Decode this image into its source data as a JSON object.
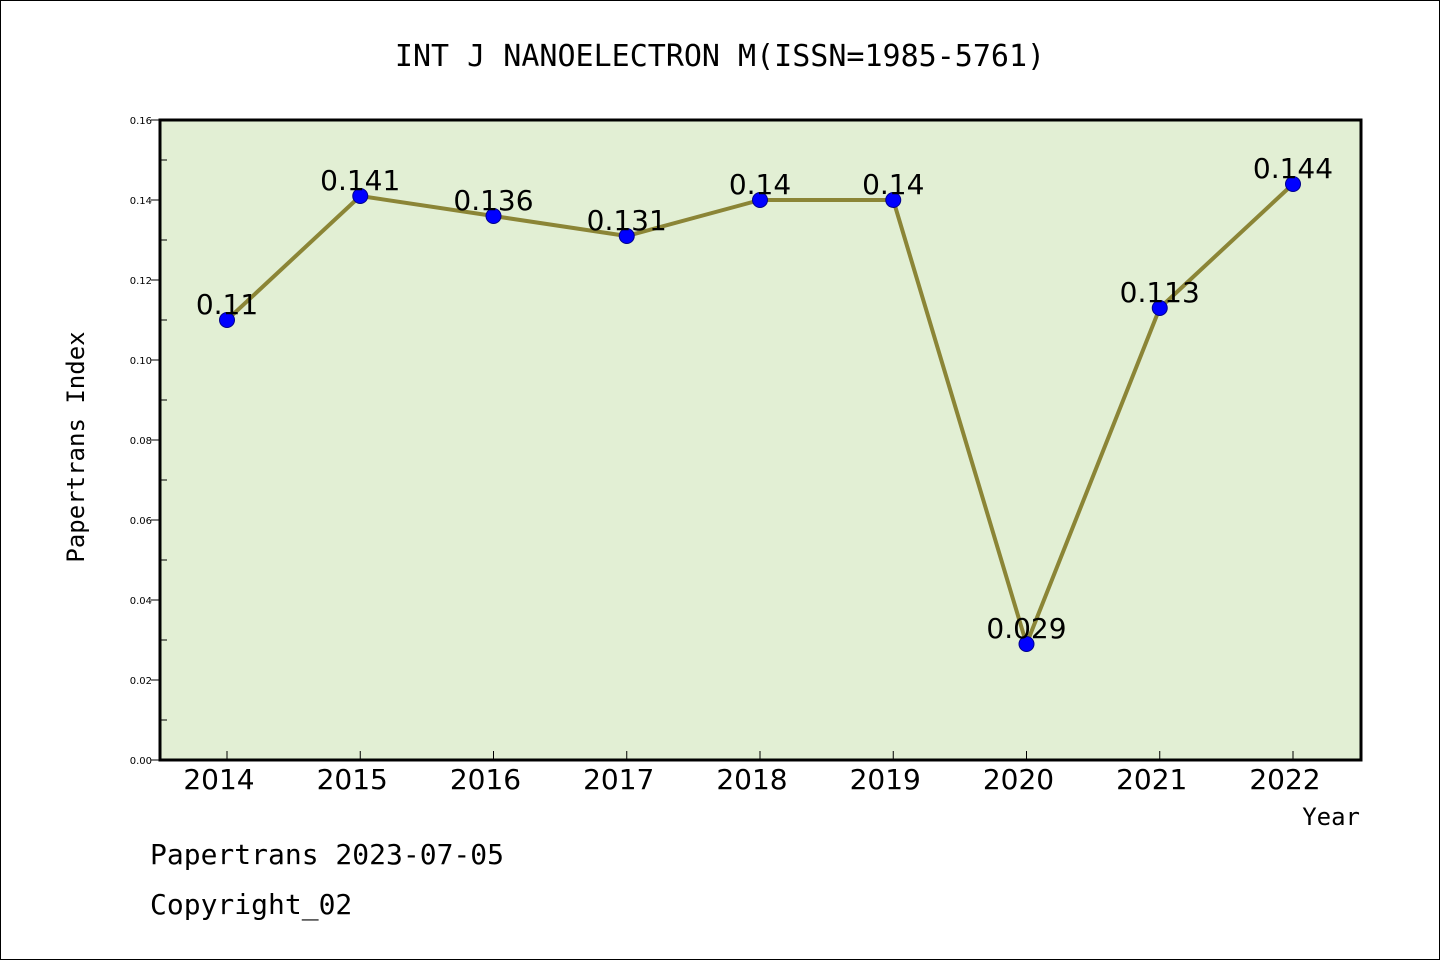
{
  "chart_data": {
    "type": "line",
    "title": "INT J NANOELECTRON M(ISSN=1985-5761)",
    "xlabel": "Year",
    "ylabel": "Papertrans Index",
    "categories": [
      "2014",
      "2015",
      "2016",
      "2017",
      "2018",
      "2019",
      "2020",
      "2021",
      "2022"
    ],
    "values": [
      0.11,
      0.141,
      0.136,
      0.131,
      0.14,
      0.14,
      0.029,
      0.113,
      0.144
    ],
    "data_labels": [
      "0.11",
      "0.141",
      "0.136",
      "0.131",
      "0.14",
      "0.14",
      "0.029",
      "0.113",
      "0.144"
    ],
    "ylim": [
      0,
      0.16
    ],
    "yticks": [
      "0.00",
      "0.02",
      "0.04",
      "0.06",
      "0.08",
      "0.10",
      "0.12",
      "0.14",
      "0.16"
    ],
    "grid": false,
    "colors": {
      "plot_background": "#e2efd4",
      "line": "#8b8536",
      "marker": "#0000ff"
    }
  },
  "footer": {
    "date_line": "Papertrans 2023-07-05",
    "copyright": "Copyright_02"
  }
}
